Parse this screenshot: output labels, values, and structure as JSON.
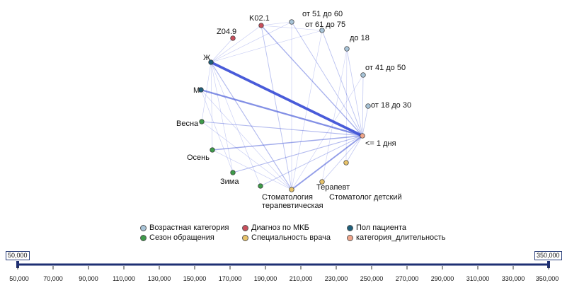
{
  "graph": {
    "nodes": [
      {
        "id": "K02.1",
        "label": "K02.1",
        "group": "diag"
      },
      {
        "id": "Z04.9",
        "label": "Z04.9",
        "group": "diag"
      },
      {
        "id": "age_51_60",
        "label": "от 51 до 60",
        "group": "age"
      },
      {
        "id": "age_61_75",
        "label": "от 61 до 75",
        "group": "age"
      },
      {
        "id": "age_18",
        "label": "до 18",
        "group": "age"
      },
      {
        "id": "age_41_50",
        "label": "от 41 до 50",
        "group": "age"
      },
      {
        "id": "age_18_30",
        "label": "от 18 до 30",
        "group": "age"
      },
      {
        "id": "female",
        "label": "Ж",
        "group": "sex"
      },
      {
        "id": "male",
        "label": "М",
        "group": "sex"
      },
      {
        "id": "spring",
        "label": "Весна",
        "group": "season"
      },
      {
        "id": "autumn",
        "label": "Осень",
        "group": "season"
      },
      {
        "id": "winter",
        "label": "Зима",
        "group": "season"
      },
      {
        "id": "summer",
        "label": "",
        "group": "season"
      },
      {
        "id": "stom_ther",
        "label": "Стоматология терапевтическая",
        "group": "spec"
      },
      {
        "id": "therapist",
        "label": "Терапевт",
        "group": "spec"
      },
      {
        "id": "stom_child",
        "label": "Стоматолог детский",
        "group": "spec"
      },
      {
        "id": "le1day",
        "label": "<= 1 дня",
        "group": "duration"
      }
    ],
    "edges": [
      {
        "source": "female",
        "target": "le1day",
        "weight": 5
      },
      {
        "source": "male",
        "target": "le1day",
        "weight": 3
      },
      {
        "source": "stom_ther",
        "target": "le1day",
        "weight": 2.5
      },
      {
        "source": "autumn",
        "target": "le1day",
        "weight": 2
      },
      {
        "source": "spring",
        "target": "le1day",
        "weight": 1.5
      },
      {
        "source": "winter",
        "target": "le1day",
        "weight": 1.5
      },
      {
        "source": "K02.1",
        "target": "le1day",
        "weight": 1.8
      },
      {
        "source": "age_51_60",
        "target": "le1day",
        "weight": 1.2
      },
      {
        "source": "age_61_75",
        "target": "le1day",
        "weight": 1.2
      },
      {
        "source": "age_18",
        "target": "le1day",
        "weight": 1
      },
      {
        "source": "age_41_50",
        "target": "le1day",
        "weight": 1
      },
      {
        "source": "age_18_30",
        "target": "le1day",
        "weight": 1
      },
      {
        "source": "therapist",
        "target": "le1day",
        "weight": 1
      },
      {
        "source": "stom_child",
        "target": "le1day",
        "weight": 1
      },
      {
        "source": "summer",
        "target": "le1day",
        "weight": 1.2
      },
      {
        "source": "female",
        "target": "stom_ther",
        "weight": 1.5
      },
      {
        "source": "female",
        "target": "age_51_60",
        "weight": 0.8
      },
      {
        "source": "female",
        "target": "age_61_75",
        "weight": 0.8
      },
      {
        "source": "female",
        "target": "spring",
        "weight": 0.8
      },
      {
        "source": "female",
        "target": "autumn",
        "weight": 0.8
      },
      {
        "source": "female",
        "target": "winter",
        "weight": 0.8
      },
      {
        "source": "female",
        "target": "K02.1",
        "weight": 0.8
      },
      {
        "source": "female",
        "target": "Z04.9",
        "weight": 0.8
      },
      {
        "source": "female",
        "target": "summer",
        "weight": 0.8
      },
      {
        "source": "male",
        "target": "stom_ther",
        "weight": 0.8
      },
      {
        "source": "male",
        "target": "winter",
        "weight": 0.8
      },
      {
        "source": "K02.1",
        "target": "stom_ther",
        "weight": 1.2
      },
      {
        "source": "K02.1",
        "target": "age_51_60",
        "weight": 0.6
      },
      {
        "source": "K02.1",
        "target": "age_61_75",
        "weight": 0.6
      },
      {
        "source": "spring",
        "target": "stom_ther",
        "weight": 0.8
      },
      {
        "source": "autumn",
        "target": "stom_ther",
        "weight": 0.8
      },
      {
        "source": "age_51_60",
        "target": "stom_ther",
        "weight": 0.8
      },
      {
        "source": "age_61_75",
        "target": "stom_ther",
        "weight": 0.8
      },
      {
        "source": "age_18",
        "target": "stom_child",
        "weight": 0.6
      },
      {
        "source": "age_41_50",
        "target": "stom_ther",
        "weight": 0.6
      },
      {
        "source": "therapist",
        "target": "age_18",
        "weight": 0.6
      }
    ]
  },
  "legend": {
    "items": [
      {
        "label": "Возрастная категория",
        "color": "#a8c4d8"
      },
      {
        "label": "Диагноз по МКБ",
        "color": "#c94f5c"
      },
      {
        "label": "Пол пациента",
        "color": "#1f5f7a"
      },
      {
        "label": "Сезон обращения",
        "color": "#3e9b4a"
      },
      {
        "label": "Специальность врача",
        "color": "#e8c36a"
      },
      {
        "label": "категория_длительность",
        "color": "#f0a58a"
      }
    ]
  },
  "range": {
    "min_value": 50000,
    "max_value": 350000,
    "min_label": "50,000",
    "max_label": "350,000",
    "ticks": [
      "50,000",
      "70,000",
      "90,000",
      "110,000",
      "130,000",
      "150,000",
      "170,000",
      "190,000",
      "210,000",
      "230,000",
      "250,000",
      "270,000",
      "290,000",
      "310,000",
      "330,000",
      "350,000"
    ]
  },
  "colors": {
    "edge": "#3b4fd6",
    "axis": "#1e2f73",
    "age": "#a8c4d8",
    "diag": "#c94f5c",
    "sex": "#1f5f7a",
    "season": "#3e9b4a",
    "spec": "#e8c36a",
    "duration": "#f0a58a"
  }
}
